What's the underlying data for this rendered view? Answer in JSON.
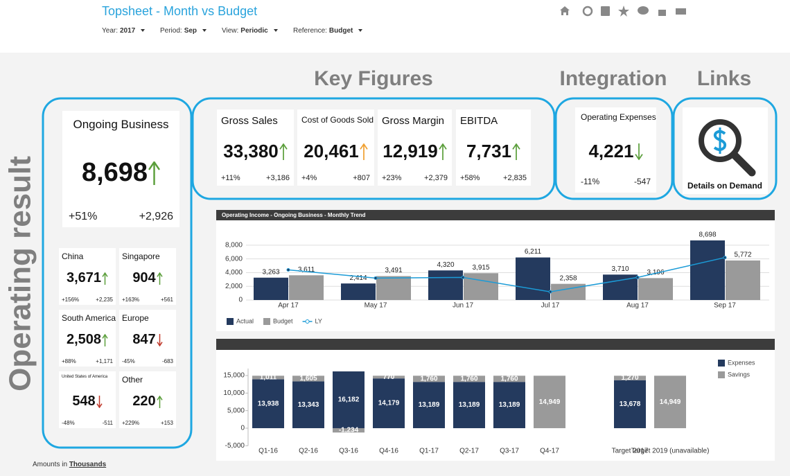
{
  "header": {
    "title": "Topsheet - Month vs Budget",
    "filters": [
      {
        "label": "Year:",
        "value": "2017"
      },
      {
        "label": "Period:",
        "value": "Sep"
      },
      {
        "label": "View:",
        "value": "Periodic"
      },
      {
        "label": "Reference:",
        "value": "Budget"
      }
    ]
  },
  "sections": {
    "key_figures": "Key Figures",
    "integration": "Integration",
    "links": "Links",
    "operating_result": "Operating result"
  },
  "operating_result": {
    "ongoing": {
      "name": "Ongoing Business",
      "value": "8,698",
      "pct": "+51%",
      "delta": "+2,926",
      "arrow": "up",
      "arrow_color": "#5a9e3a"
    },
    "regions": [
      {
        "name": "China",
        "value": "3,671",
        "pct": "+156%",
        "delta": "+2,235",
        "arrow": "up",
        "arrow_color": "#5a9e3a"
      },
      {
        "name": "Singapore",
        "value": "904",
        "pct": "+163%",
        "delta": "+561",
        "arrow": "up",
        "arrow_color": "#5a9e3a"
      },
      {
        "name": "South America",
        "value": "2,508",
        "pct": "+88%",
        "delta": "+1,171",
        "arrow": "up",
        "arrow_color": "#5a9e3a"
      },
      {
        "name": "Europe",
        "value": "847",
        "pct": "-45%",
        "delta": "-683",
        "arrow": "down",
        "arrow_color": "#c0392b"
      },
      {
        "name": "United States of America",
        "value": "548",
        "pct": "-48%",
        "delta": "-511",
        "arrow": "down",
        "arrow_color": "#c0392b"
      },
      {
        "name": "Other",
        "value": "220",
        "pct": "+229%",
        "delta": "+153",
        "arrow": "up",
        "arrow_color": "#5a9e3a"
      }
    ]
  },
  "key_figures": [
    {
      "name": "Gross Sales",
      "value": "33,380",
      "pct": "+11%",
      "delta": "+3,186",
      "arrow": "up",
      "arrow_color": "#5a9e3a"
    },
    {
      "name": "Cost of Goods Sold",
      "value": "20,461",
      "pct": "+4%",
      "delta": "+807",
      "arrow": "up",
      "arrow_color": "#f0a030"
    },
    {
      "name": "Gross Margin",
      "value": "12,919",
      "pct": "+23%",
      "delta": "+2,379",
      "arrow": "up",
      "arrow_color": "#5a9e3a"
    },
    {
      "name": "EBITDA",
      "value": "7,731",
      "pct": "+58%",
      "delta": "+2,835",
      "arrow": "up",
      "arrow_color": "#5a9e3a"
    }
  ],
  "integration": {
    "name": "Operating Expenses",
    "value": "4,221",
    "pct": "-11%",
    "delta": "-547",
    "arrow": "down",
    "arrow_color": "#5a9e3a"
  },
  "links": {
    "label": "Details on Demand"
  },
  "footer": {
    "prefix": "Amounts in",
    "unit": "Thousands"
  },
  "chart_data": [
    {
      "type": "bar",
      "title": "Operating Income - Ongoing Business - Monthly Trend",
      "categories": [
        "Apr 17",
        "May 17",
        "Jun 17",
        "Jul 17",
        "Aug 17",
        "Sep 17"
      ],
      "series": [
        {
          "name": "Actual",
          "color": "#243a5e",
          "values": [
            3263,
            2414,
            4320,
            6211,
            3710,
            8698
          ],
          "value_labels": [
            "3,263",
            "2,414",
            "4,320",
            "6,211",
            "3,710",
            "8,698"
          ]
        },
        {
          "name": "Budget",
          "color": "#9a9a9a",
          "values": [
            3611,
            3491,
            3915,
            2358,
            3196,
            5772
          ],
          "value_labels": [
            "3,611",
            "3,491",
            "3,915",
            "2,358",
            "3,196",
            "5,772"
          ]
        },
        {
          "name": "LY",
          "type": "line",
          "color": "#1b9bd7",
          "values": [
            4400,
            3200,
            3300,
            1200,
            3300,
            6200
          ]
        }
      ],
      "ylim": [
        0,
        9000
      ],
      "yticks": [
        0,
        {
          "value": 2000,
          "label": "2,000"
        },
        {
          "value": 4000,
          "label": "4,000"
        },
        {
          "value": 6000,
          "label": "6,000"
        },
        {
          "value": 8000,
          "label": "8,000"
        }
      ],
      "grid": true
    },
    {
      "type": "stacked_bar",
      "categories": [
        "Q1-16",
        "Q2-16",
        "Q3-16",
        "Q4-16",
        "Q1-17",
        "Q2-17",
        "Q3-17",
        "Q4-17",
        null,
        "Target 2017",
        "Target 2019 (unavailable)"
      ],
      "series": [
        {
          "name": "Expenses",
          "color": "#243a5e",
          "values": [
            13938,
            13343,
            16182,
            14179,
            13189,
            13189,
            13189,
            0,
            null,
            13678,
            null
          ],
          "value_labels": [
            "13,938",
            "13,343",
            "16,182",
            "14,179",
            "13,189",
            "13,189",
            "13,189",
            "0",
            null,
            "13,678",
            null
          ]
        },
        {
          "name": "Savings",
          "color": "#9a9a9a",
          "values": [
            1011,
            1605,
            -1234,
            770,
            1760,
            1760,
            1760,
            14949,
            null,
            1270,
            14949
          ],
          "value_labels": [
            "1,011",
            "1,605",
            "-1,234",
            "770",
            "1,760",
            "1,760",
            "1,760",
            "14,949",
            null,
            "1,270",
            "14,949"
          ]
        }
      ],
      "ylim": [
        -5000,
        17000
      ],
      "yticks": [
        {
          "value": -5000,
          "label": "-5,000"
        },
        0,
        {
          "value": 5000,
          "label": "5,000"
        },
        {
          "value": 10000,
          "label": "10,000"
        },
        {
          "value": 15000,
          "label": "15,000"
        }
      ],
      "grid": false
    }
  ]
}
